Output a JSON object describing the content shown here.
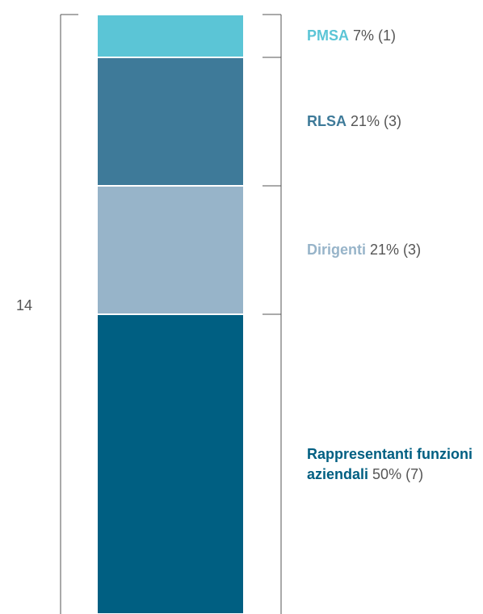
{
  "chart_data": {
    "type": "stacked_bar",
    "total": 14,
    "ylim": [
      0,
      14
    ],
    "series": [
      {
        "name": "Rappresentanti funzioni aziendali",
        "color": "#005f82",
        "values": [
          7
        ],
        "value_labels": [
          "50% (7)"
        ]
      },
      {
        "name": "Dirigenti",
        "color": "#97b4c9",
        "values": [
          3
        ],
        "value_labels": [
          "21% (3)"
        ]
      },
      {
        "name": "RLSA",
        "color": "#3e7a99",
        "values": [
          3
        ],
        "value_labels": [
          "21% (3)"
        ]
      },
      {
        "name": "PMSA",
        "color": "#5bc5d6",
        "values": [
          1
        ],
        "value_labels": [
          "7% (1)"
        ]
      }
    ]
  }
}
